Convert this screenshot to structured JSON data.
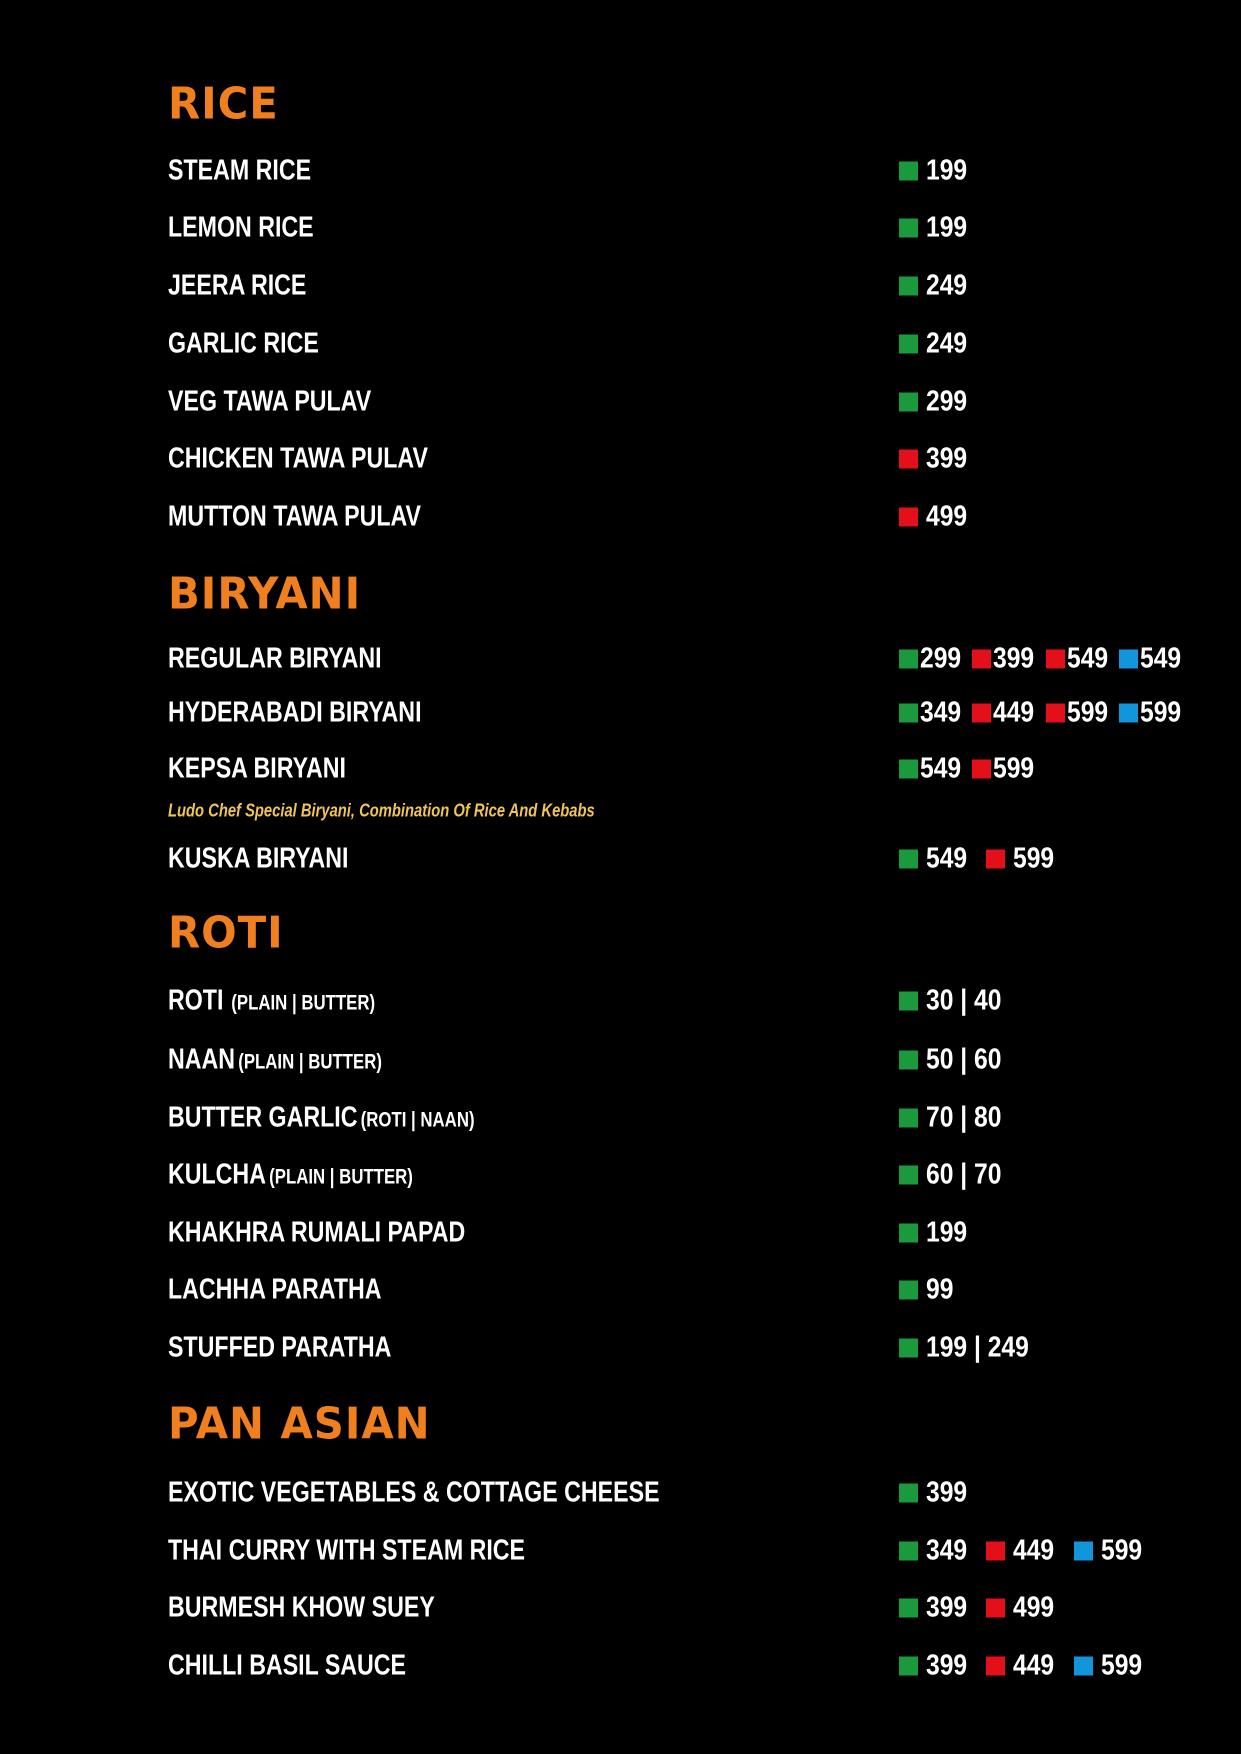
{
  "colors": {
    "veg": "#1a9a3c",
    "nonveg": "#e3101a",
    "blue": "#1296db",
    "heading": "#f0801f",
    "description": "#f1c45a"
  },
  "sections": [
    {
      "title": "RICE",
      "items": [
        {
          "name": "STEAM RICE",
          "prices": [
            {
              "type": "veg",
              "value": "199"
            }
          ]
        },
        {
          "name": "LEMON RICE",
          "prices": [
            {
              "type": "veg",
              "value": "199"
            }
          ]
        },
        {
          "name": "JEERA RICE",
          "prices": [
            {
              "type": "veg",
              "value": "249"
            }
          ]
        },
        {
          "name": "GARLIC RICE",
          "prices": [
            {
              "type": "veg",
              "value": "249"
            }
          ]
        },
        {
          "name": "VEG TAWA PULAV",
          "prices": [
            {
              "type": "veg",
              "value": "299"
            }
          ]
        },
        {
          "name": "CHICKEN TAWA PULAV",
          "prices": [
            {
              "type": "nonveg",
              "value": "399"
            }
          ]
        },
        {
          "name": "MUTTON TAWA PULAV",
          "prices": [
            {
              "type": "nonveg",
              "value": "499"
            }
          ]
        }
      ]
    },
    {
      "title": "BIRYANI",
      "items": [
        {
          "name": "REGULAR BIRYANI",
          "tight": true,
          "prices": [
            {
              "type": "veg",
              "value": "299"
            },
            {
              "type": "nonveg",
              "value": "399"
            },
            {
              "type": "nonveg",
              "value": "549"
            },
            {
              "type": "blue",
              "value": "549"
            }
          ]
        },
        {
          "name": "HYDERABADI BIRYANI",
          "tight": true,
          "prices": [
            {
              "type": "veg",
              "value": "349"
            },
            {
              "type": "nonveg",
              "value": "449"
            },
            {
              "type": "nonveg",
              "value": "599"
            },
            {
              "type": "blue",
              "value": "599"
            }
          ]
        },
        {
          "name": "KEPSA BIRYANI",
          "tight": true,
          "description": "Ludo Chef Special Biryani, Combination Of Rice And Kebabs",
          "prices": [
            {
              "type": "veg",
              "value": "549"
            },
            {
              "type": "nonveg",
              "value": "599"
            }
          ]
        },
        {
          "name": "KUSKA BIRYANI",
          "prices": [
            {
              "type": "veg",
              "value": "549"
            },
            {
              "type": "nonveg",
              "value": "599"
            }
          ]
        }
      ]
    },
    {
      "title": "ROTI",
      "items": [
        {
          "name": "ROTI",
          "sub": " (PLAIN | BUTTER)",
          "prices": [
            {
              "type": "veg",
              "value": "30 | 40"
            }
          ]
        },
        {
          "name": "NAAN",
          "sub": "(PLAIN | BUTTER)",
          "prices": [
            {
              "type": "veg",
              "value": "50 | 60"
            }
          ]
        },
        {
          "name": "BUTTER GARLIC",
          "sub": "(ROTI | NAAN)",
          "prices": [
            {
              "type": "veg",
              "value": "70 | 80"
            }
          ]
        },
        {
          "name": "KULCHA",
          "sub": "(PLAIN | BUTTER)",
          "prices": [
            {
              "type": "veg",
              "value": "60 | 70"
            }
          ]
        },
        {
          "name": "KHAKHRA RUMALI PAPAD",
          "prices": [
            {
              "type": "veg",
              "value": "199"
            }
          ]
        },
        {
          "name": "LACHHA PARATHA",
          "prices": [
            {
              "type": "veg",
              "value": "99"
            }
          ]
        },
        {
          "name": "STUFFED PARATHA",
          "prices": [
            {
              "type": "veg",
              "value": "199 | 249"
            }
          ]
        }
      ]
    },
    {
      "title": "PAN ASIAN",
      "items": [
        {
          "name": "EXOTIC VEGETABLES & COTTAGE CHEESE",
          "prices": [
            {
              "type": "veg",
              "value": "399"
            }
          ]
        },
        {
          "name": "THAI CURRY WITH STEAM RICE",
          "prices": [
            {
              "type": "veg",
              "value": "349"
            },
            {
              "type": "nonveg",
              "value": "449"
            },
            {
              "type": "blue",
              "value": "599"
            }
          ]
        },
        {
          "name": "BURMESH KHOW SUEY",
          "prices": [
            {
              "type": "veg",
              "value": "399"
            },
            {
              "type": "nonveg",
              "value": "499"
            }
          ]
        },
        {
          "name": "CHILLI BASIL SAUCE",
          "prices": [
            {
              "type": "veg",
              "value": "399"
            },
            {
              "type": "nonveg",
              "value": "449"
            },
            {
              "type": "blue",
              "value": "599"
            }
          ]
        }
      ]
    }
  ]
}
